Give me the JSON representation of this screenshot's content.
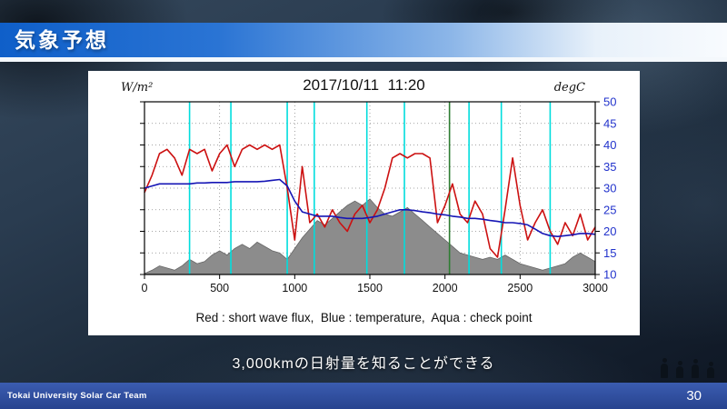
{
  "slide": {
    "title": "気象予想",
    "subtitle": "3,000kmの日射量を知ることができる",
    "footer": {
      "team": "Tokai University Solar Car Team",
      "page_number": "30"
    },
    "colors": {
      "title_bar_blue": "#0f5fc9",
      "footer_blue": "#27438f",
      "background_navy": "#1b2939"
    }
  },
  "chart_data": {
    "type": "line",
    "title": "2017/10/11  11:20",
    "left_axis_label": "W/m²",
    "right_axis_label": "degC",
    "caption": "Red : short wave flux,  Blue : temperature,  Aqua : check point",
    "x_range": [
      0,
      3000
    ],
    "y_right_range": [
      10,
      50
    ],
    "xticks": [
      0,
      500,
      1000,
      1500,
      2000,
      2500,
      3000
    ],
    "yticks_right": [
      10,
      15,
      20,
      25,
      30,
      35,
      40,
      45,
      50
    ],
    "right_axis_color": "#2233cc",
    "grid": true,
    "x_start": 0,
    "x_step": 50,
    "series": [
      {
        "name": "short wave flux",
        "kind": "line",
        "color": "#cc1111",
        "values": [
          29,
          33,
          38,
          39,
          37,
          33,
          39,
          38,
          39,
          34,
          38,
          40,
          35,
          39,
          40,
          39,
          40,
          39,
          40,
          30,
          18,
          35,
          22,
          24,
          21,
          25,
          22,
          20,
          24,
          26,
          22,
          25,
          30,
          37,
          38,
          37,
          38,
          38,
          37,
          22,
          26,
          31,
          24,
          22,
          27,
          24,
          16,
          14,
          25,
          37,
          26,
          18,
          22,
          25,
          20,
          17,
          22,
          19,
          24,
          18,
          21
        ]
      },
      {
        "name": "temperature",
        "kind": "line",
        "color": "#1515b5",
        "values": [
          30,
          30.5,
          31,
          31,
          31,
          31,
          31,
          31.2,
          31.2,
          31.3,
          31.3,
          31.3,
          31.5,
          31.5,
          31.5,
          31.5,
          31.6,
          31.8,
          32,
          30.5,
          27,
          24.5,
          24,
          23.5,
          23.5,
          23.5,
          23.2,
          23,
          23,
          23,
          23.2,
          23.5,
          24,
          24.5,
          25,
          25,
          24.8,
          24.5,
          24.3,
          24,
          23.8,
          23.5,
          23.3,
          23,
          23,
          22.8,
          22.5,
          22.3,
          22,
          22,
          21.8,
          21.5,
          20.5,
          19.5,
          19,
          18.8,
          19,
          19.2,
          19.5,
          19.5,
          19.3
        ]
      },
      {
        "name": "terrain profile",
        "kind": "area",
        "color": "#8c8c8c",
        "values": [
          10.2,
          11,
          12,
          11.5,
          11,
          12,
          13.5,
          12.5,
          13,
          14.5,
          15.5,
          14.5,
          16,
          17,
          16,
          17.5,
          16.5,
          15.5,
          15,
          13.5,
          16,
          18.5,
          20.5,
          22.5,
          21.5,
          23,
          24.5,
          26,
          27,
          26,
          27.5,
          25.5,
          24,
          23.5,
          24.5,
          25.5,
          24,
          22.5,
          21,
          19.5,
          18,
          16.5,
          15,
          14.5,
          14,
          13.5,
          14,
          13.5,
          14.5,
          13.5,
          12.5,
          12,
          11.5,
          11,
          11.5,
          12,
          12.5,
          14,
          15,
          14,
          13
        ]
      }
    ],
    "check_points_x": [
      300,
      575,
      950,
      1130,
      1480,
      1730,
      2160,
      2375,
      2700
    ],
    "check_point_color": "#00dddd",
    "marker_line": {
      "x": 2030,
      "color": "#2e7d32"
    }
  }
}
